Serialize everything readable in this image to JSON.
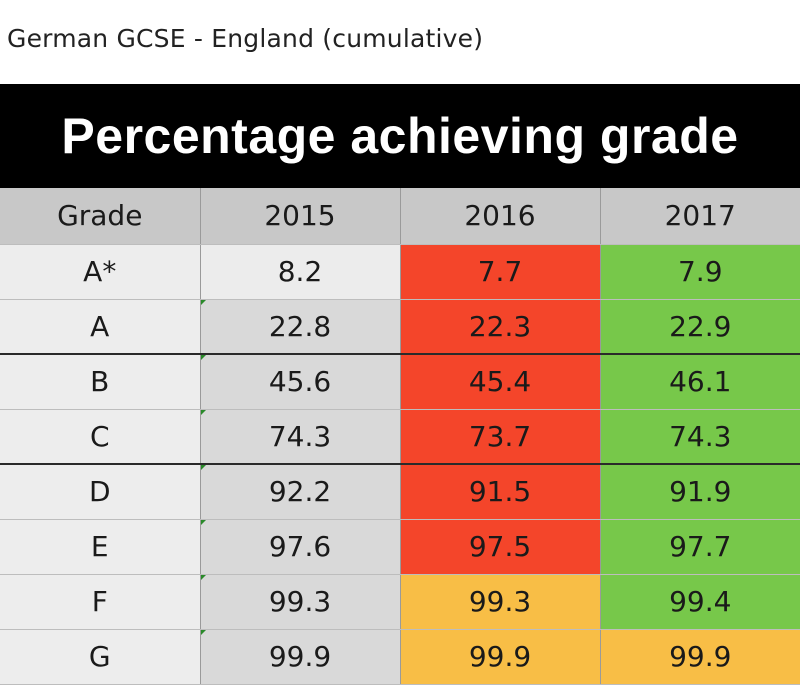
{
  "caption": "German GCSE - England (cumulative)",
  "banner": "Percentage achieving grade",
  "colors": {
    "decline": "#f4452a",
    "increase": "#77c84a",
    "same": "#f8be46"
  },
  "chart_data": {
    "type": "table",
    "title": "Percentage achieving grade",
    "columns": [
      "Grade",
      "2015",
      "2016",
      "2017"
    ],
    "rows": [
      {
        "grade": "A*",
        "y2015": "8.2",
        "y2016": "7.7",
        "y2017": "7.9",
        "c2016": "red",
        "c2017": "green"
      },
      {
        "grade": "A",
        "y2015": "22.8",
        "y2016": "22.3",
        "y2017": "22.9",
        "c2016": "red",
        "c2017": "green"
      },
      {
        "grade": "B",
        "y2015": "45.6",
        "y2016": "45.4",
        "y2017": "46.1",
        "c2016": "red",
        "c2017": "green"
      },
      {
        "grade": "C",
        "y2015": "74.3",
        "y2016": "73.7",
        "y2017": "74.3",
        "c2016": "red",
        "c2017": "green"
      },
      {
        "grade": "D",
        "y2015": "92.2",
        "y2016": "91.5",
        "y2017": "91.9",
        "c2016": "red",
        "c2017": "green"
      },
      {
        "grade": "E",
        "y2015": "97.6",
        "y2016": "97.5",
        "y2017": "97.7",
        "c2016": "red",
        "c2017": "green"
      },
      {
        "grade": "F",
        "y2015": "99.3",
        "y2016": "99.3",
        "y2017": "99.4",
        "c2016": "amber",
        "c2017": "green"
      },
      {
        "grade": "G",
        "y2015": "99.9",
        "y2016": "99.9",
        "y2017": "99.9",
        "c2016": "amber",
        "c2017": "amber"
      }
    ]
  }
}
